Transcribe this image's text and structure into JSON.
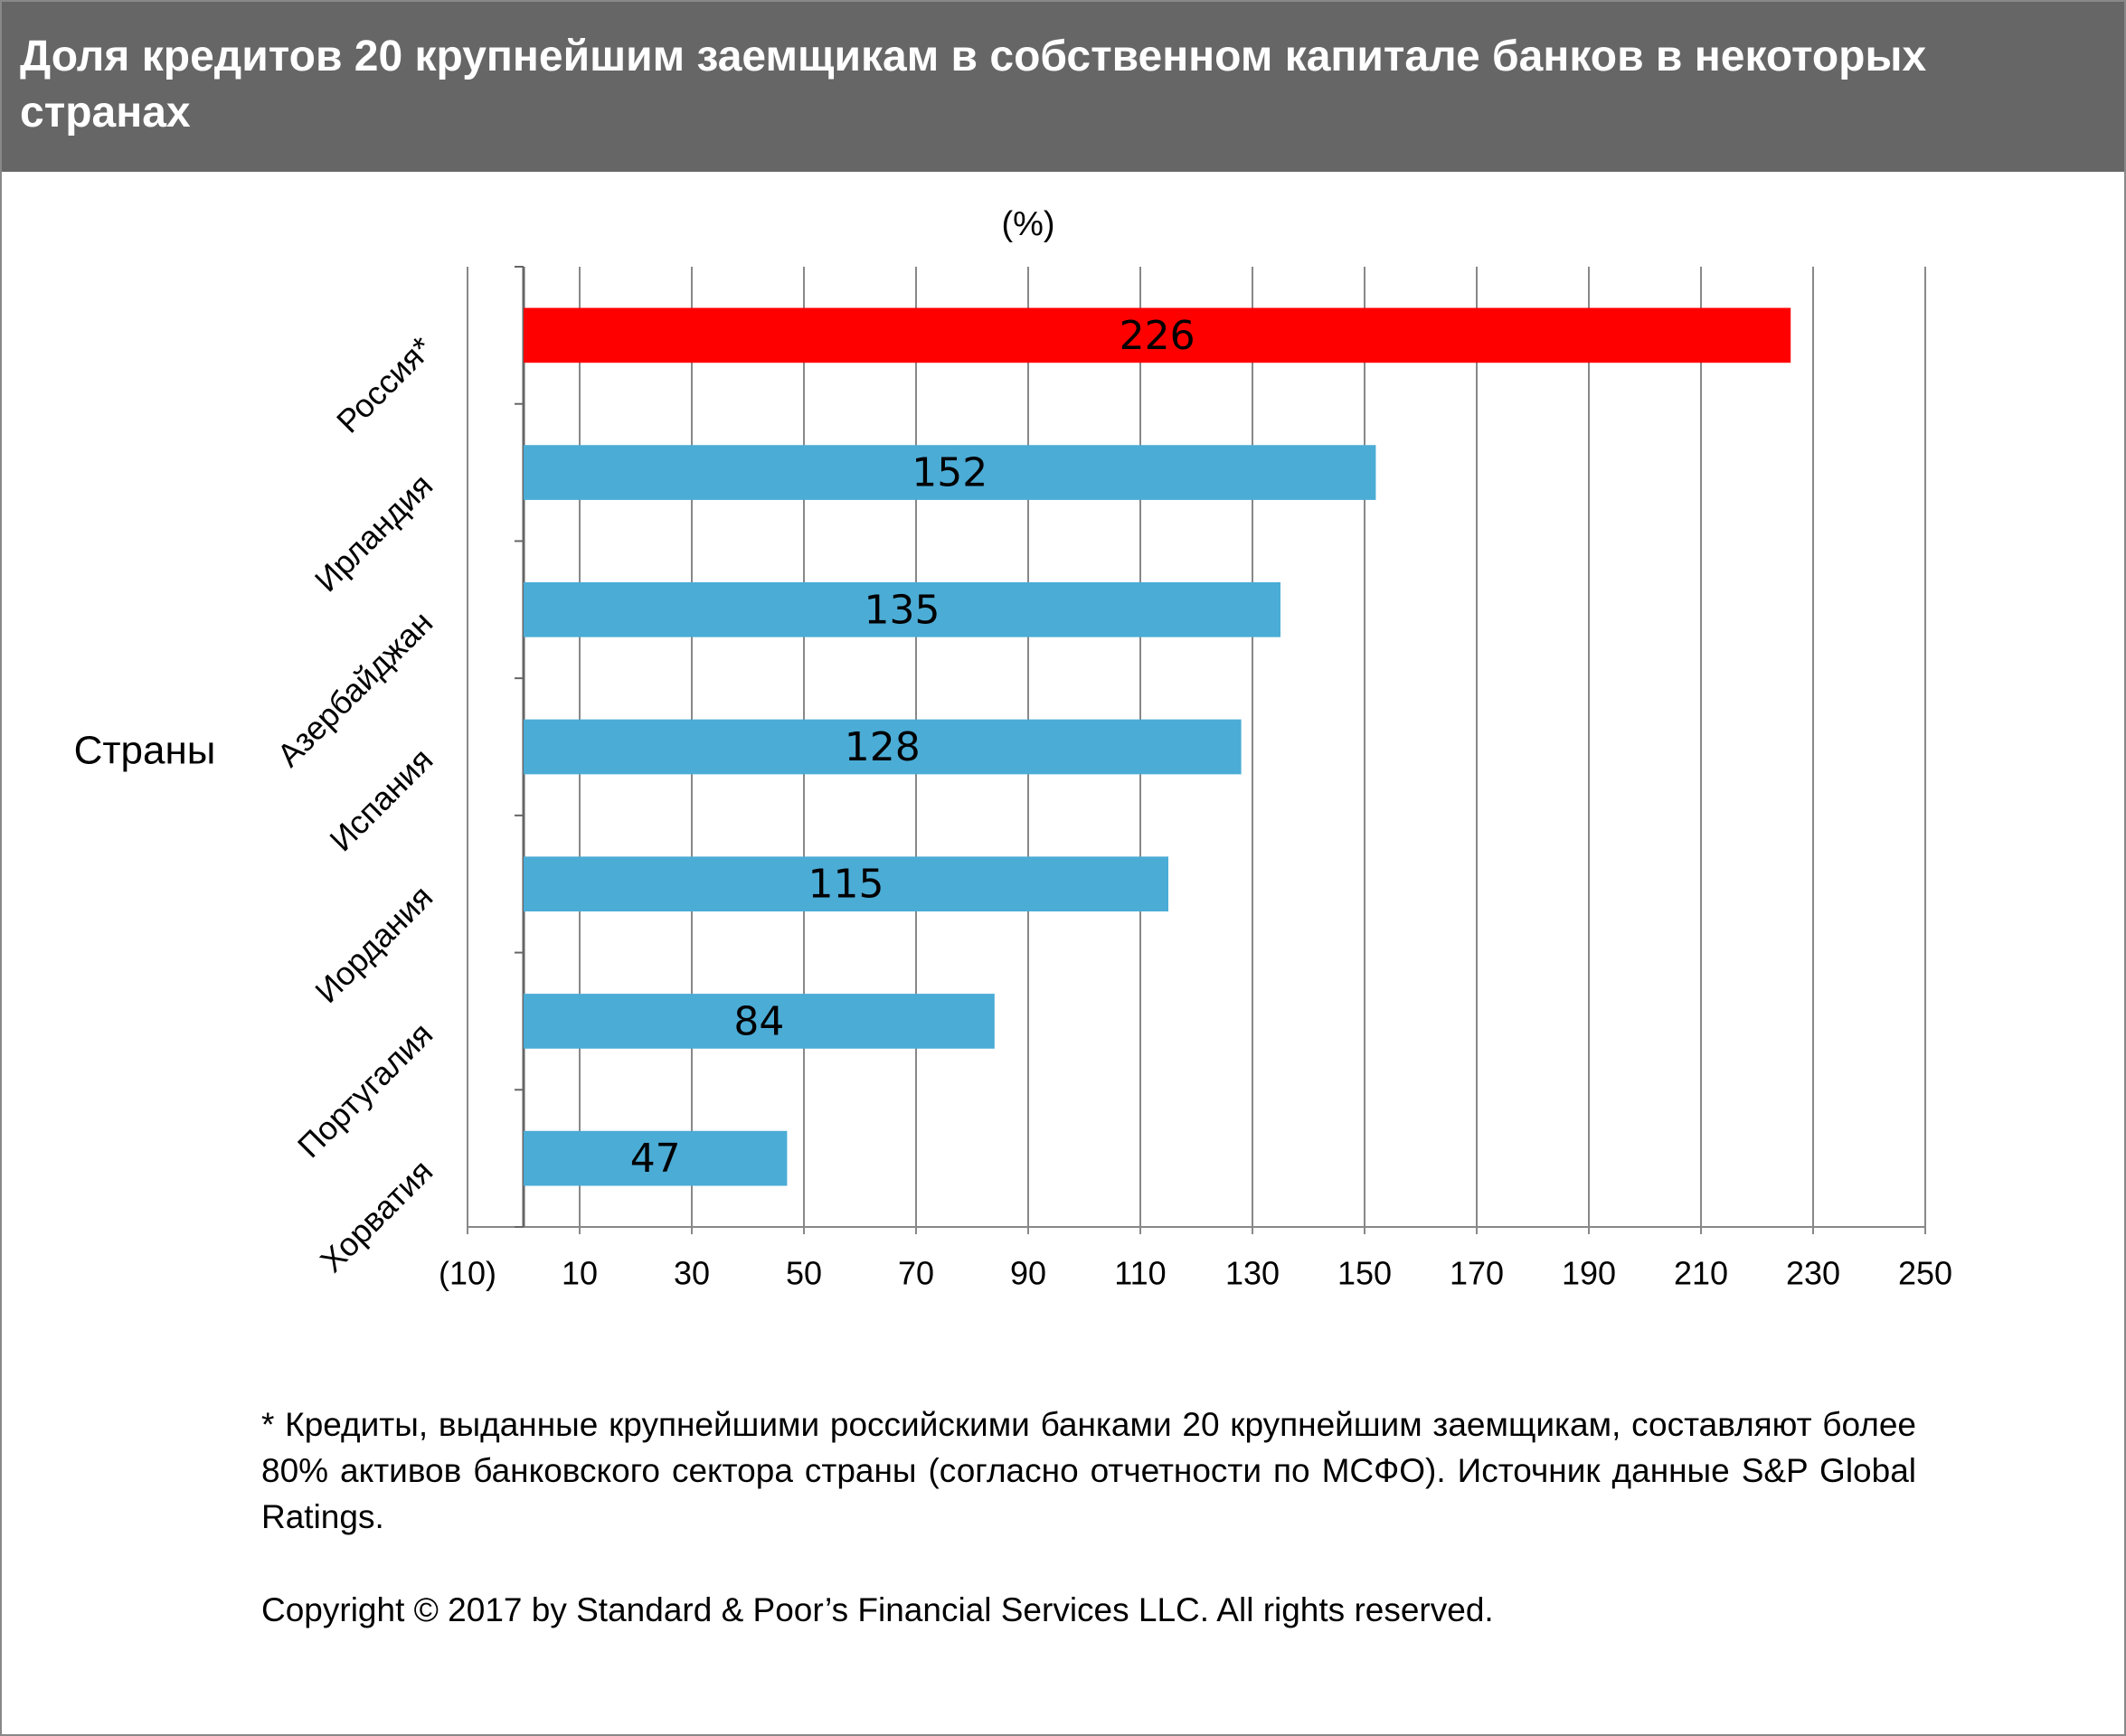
{
  "chart_data": {
    "type": "bar",
    "orientation": "horizontal",
    "title": "Доля кредитов 20 крупнейшим заемщикам в собственном капитале банков в некоторых странах",
    "x_label": "(%)",
    "y_label": "Страны",
    "categories": [
      "Россия*",
      "Ирландия",
      "Азербайджан",
      "Испания",
      "Иордания",
      "Португалия",
      "Хорватия"
    ],
    "values": [
      226,
      152,
      135,
      128,
      115,
      84,
      47
    ],
    "colors": [
      "#ff0000",
      "#4bacd6",
      "#4bacd6",
      "#4bacd6",
      "#4bacd6",
      "#4bacd6",
      "#4bacd6"
    ],
    "xlim": [
      -10,
      250
    ],
    "xticks": [
      {
        "value": -10,
        "label": "(10)"
      },
      10,
      30,
      50,
      70,
      90,
      110,
      130,
      150,
      170,
      190,
      210,
      230,
      250
    ],
    "grid": true,
    "footnote": "* Кредиты, выданные крупнейшими российскими банками 20 крупнейшим заемщикам, составляют более 80% активов банковского сектора страны (согласно отчетности по МСФО). Источник данные S&P Global Ratings.",
    "copyright": "Copyright © 2017 by Standard & Poor’s Financial Services LLC. All rights reserved."
  }
}
